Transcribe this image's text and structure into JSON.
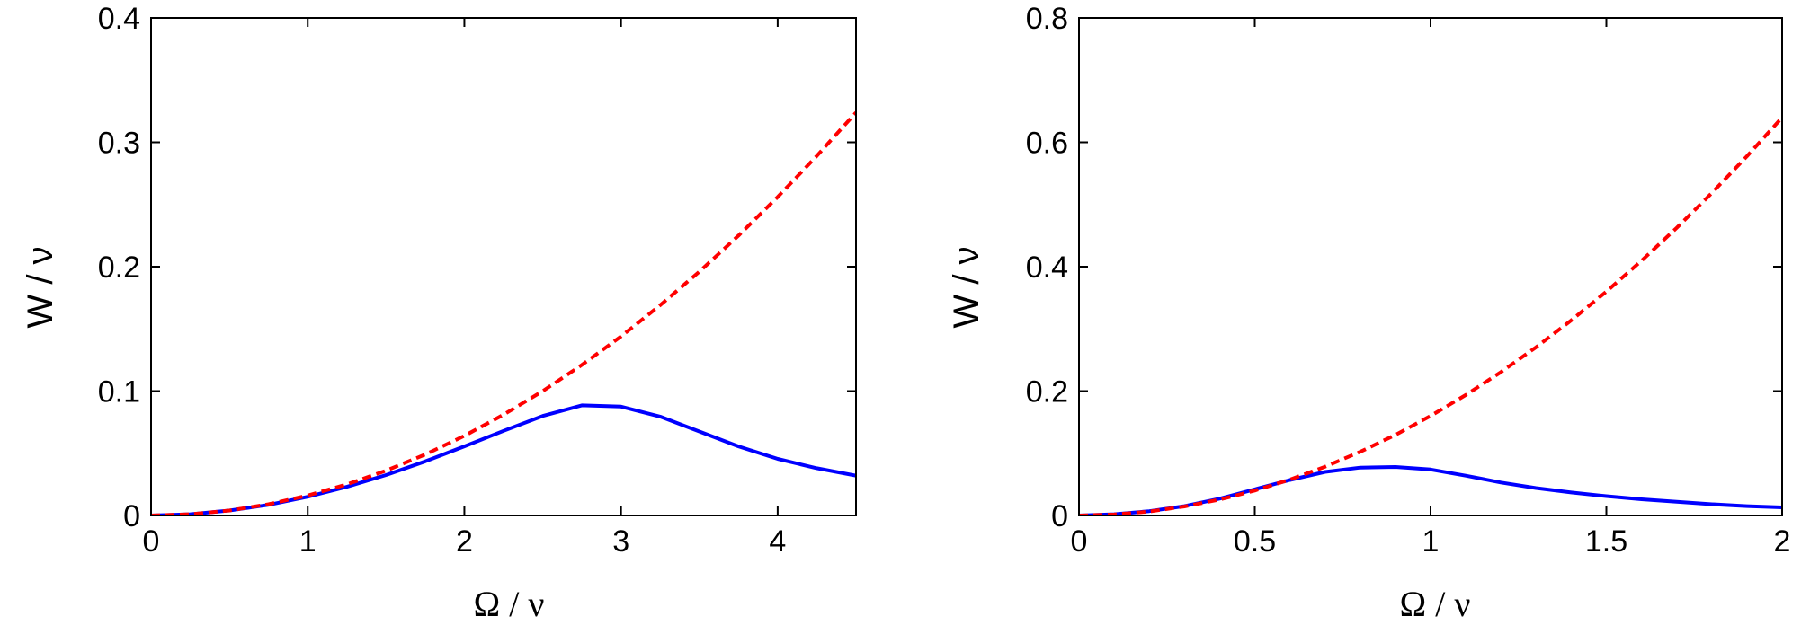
{
  "figure": {
    "colors": {
      "series_solid": "#0000ff",
      "series_dashed": "#ff0000",
      "axes": "#000000",
      "background": "#ffffff"
    }
  },
  "chart_data": [
    {
      "type": "line",
      "xlabel": "Ω / ν",
      "ylabel": "W / ν",
      "xlim": [
        0,
        4.5
      ],
      "ylim": [
        0,
        0.4
      ],
      "xticks": [
        0,
        1,
        2,
        3,
        4
      ],
      "xtick_labels": [
        "0",
        "1",
        "2",
        "3",
        "4"
      ],
      "yticks": [
        0,
        0.1,
        0.2,
        0.3,
        0.4
      ],
      "ytick_labels": [
        "0",
        "0.1",
        "0.2",
        "0.3",
        "0.4"
      ],
      "grid": false,
      "series": [
        {
          "style": "solid",
          "color": "#0000ff",
          "x": [
            0,
            0.25,
            0.5,
            0.75,
            1,
            1.25,
            1.5,
            1.75,
            2,
            2.25,
            2.5,
            2.75,
            3,
            3.25,
            3.5,
            3.75,
            4,
            4.25,
            4.5
          ],
          "y": [
            0,
            0.001,
            0.004,
            0.0085,
            0.015,
            0.023,
            0.0325,
            0.0435,
            0.0555,
            0.068,
            0.08,
            0.0885,
            0.0875,
            0.0795,
            0.0675,
            0.0555,
            0.0455,
            0.038,
            0.032
          ]
        },
        {
          "style": "dashed",
          "color": "#ff0000",
          "x": [
            0,
            0.25,
            0.5,
            0.75,
            1,
            1.25,
            1.5,
            1.75,
            2,
            2.25,
            2.5,
            2.75,
            3,
            3.25,
            3.5,
            3.75,
            4,
            4.25,
            4.5
          ],
          "y": [
            0,
            0.001,
            0.004,
            0.009,
            0.016,
            0.025,
            0.036,
            0.049,
            0.064,
            0.081,
            0.1,
            0.121,
            0.144,
            0.169,
            0.196,
            0.225,
            0.256,
            0.289,
            0.324
          ]
        }
      ]
    },
    {
      "type": "line",
      "xlabel": "Ω / ν",
      "ylabel": "W / ν",
      "xlim": [
        0,
        2
      ],
      "ylim": [
        0,
        0.8
      ],
      "xticks": [
        0,
        0.5,
        1,
        1.5,
        2
      ],
      "xtick_labels": [
        "0",
        "0.5",
        "1",
        "1.5",
        "2"
      ],
      "yticks": [
        0,
        0.2,
        0.4,
        0.6,
        0.8
      ],
      "ytick_labels": [
        "0",
        "0.2",
        "0.4",
        "0.6",
        "0.8"
      ],
      "grid": false,
      "series": [
        {
          "style": "solid",
          "color": "#0000ff",
          "x": [
            0,
            0.1,
            0.2,
            0.3,
            0.4,
            0.5,
            0.6,
            0.7,
            0.8,
            0.9,
            1,
            1.1,
            1.2,
            1.3,
            1.4,
            1.5,
            1.6,
            1.7,
            1.8,
            1.9,
            2
          ],
          "y": [
            0,
            0.002,
            0.007,
            0.015,
            0.027,
            0.042,
            0.057,
            0.07,
            0.077,
            0.078,
            0.074,
            0.064,
            0.053,
            0.044,
            0.037,
            0.031,
            0.026,
            0.022,
            0.018,
            0.015,
            0.013
          ]
        },
        {
          "style": "dashed",
          "color": "#ff0000",
          "x": [
            0,
            0.1,
            0.2,
            0.3,
            0.4,
            0.5,
            0.6,
            0.7,
            0.8,
            0.9,
            1,
            1.1,
            1.2,
            1.3,
            1.4,
            1.5,
            1.6,
            1.7,
            1.8,
            1.9,
            2
          ],
          "y": [
            0,
            0.0016,
            0.0064,
            0.0144,
            0.0256,
            0.04,
            0.0576,
            0.0784,
            0.1024,
            0.1296,
            0.16,
            0.1936,
            0.2304,
            0.2704,
            0.3136,
            0.36,
            0.4096,
            0.4624,
            0.5184,
            0.5776,
            0.64
          ]
        }
      ]
    }
  ]
}
